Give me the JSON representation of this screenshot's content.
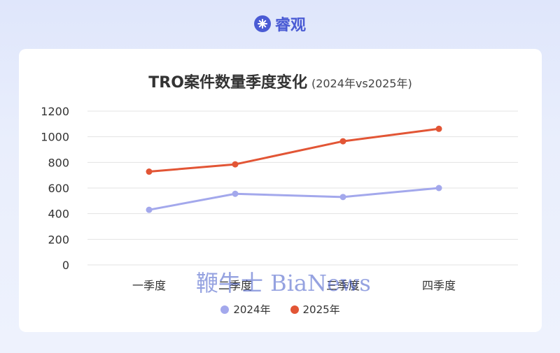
{
  "brand": {
    "name": "睿观",
    "icon": "asterisk-flower-icon",
    "color": "#4a5bd4"
  },
  "chart_data": {
    "type": "line",
    "title": "TRO案件数量季度变化",
    "subtitle": "(2024年vs2025年)",
    "categories": [
      "一季度",
      "二季度",
      "三季度",
      "四季度"
    ],
    "series": [
      {
        "name": "2024年",
        "color": "#a3a8ec",
        "values": [
          430,
          555,
          530,
          600
        ]
      },
      {
        "name": "2025年",
        "color": "#e25535",
        "values": [
          728,
          785,
          965,
          1062
        ]
      }
    ],
    "ylim": [
      0,
      1200
    ],
    "yticks": [
      0,
      200,
      400,
      600,
      800,
      1000,
      1200
    ],
    "grid": true,
    "legend": "bottom"
  },
  "watermark": "鞭牛士 BiaNews"
}
